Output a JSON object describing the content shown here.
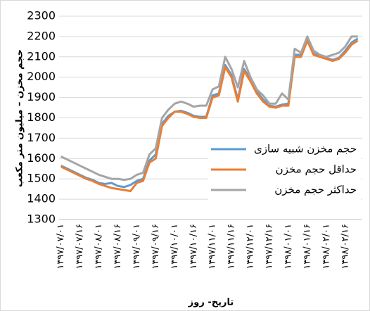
{
  "chart_data": {
    "type": "line",
    "y_label": "حجم مخزن – میلیون متر مکعب",
    "x_label": "تاریخ- روز",
    "categories": [
      "۱۳۹۷/۰۷/۰۱",
      null,
      null,
      "۱۳۹۷/۰۷/۱۶",
      null,
      null,
      "۱۳۹۷/۰۸/۰۱",
      null,
      null,
      "۱۳۹۷/۰۸/۱۶",
      null,
      null,
      "۱۳۹۷/۰۹/۰۱",
      null,
      null,
      "۱۳۹۷/۰۹/۱۶",
      null,
      null,
      "۱۳۹۷/۱۰/۰۱",
      null,
      null,
      "۱۳۹۷/۱۰/۱۶",
      null,
      null,
      "۱۳۹۷/۱۱/۰۱",
      null,
      null,
      "۱۳۹۷/۱۱/۱۶",
      null,
      null,
      "۱۳۹۷/۱۲/۰۱",
      null,
      null,
      "۱۳۹۷/۱۲/۱۶",
      null,
      null,
      "۱۳۹۸/۰۱/۰۱",
      null,
      null,
      "۱۳۹۸/۰۱/۱۶",
      null,
      null,
      "۱۳۹۸/۰۲/۰۱",
      null,
      null,
      "۱۳۹۸/۰۲/۱۶",
      null,
      null
    ],
    "series": [
      {
        "name": "حجم مخزن  شبیه سازی",
        "color": "#5b9bd5",
        "values": [
          1565,
          1550,
          1535,
          1520,
          1505,
          1495,
          1480,
          1475,
          1480,
          1465,
          1460,
          1470,
          1490,
          1500,
          1590,
          1620,
          1770,
          1810,
          1830,
          1835,
          1825,
          1810,
          1805,
          1805,
          1910,
          1920,
          2060,
          2010,
          1890,
          2040,
          1990,
          1930,
          1890,
          1860,
          1855,
          1865,
          1870,
          2110,
          2110,
          2190,
          2115,
          2105,
          2095,
          2085,
          2095,
          2130,
          2170,
          2190
        ]
      },
      {
        "name": "حداقل حجم مخزن",
        "color": "#ed7d31",
        "values": [
          1560,
          1545,
          1530,
          1515,
          1500,
          1490,
          1475,
          1465,
          1455,
          1450,
          1445,
          1440,
          1480,
          1490,
          1580,
          1600,
          1760,
          1800,
          1830,
          1830,
          1820,
          1805,
          1800,
          1800,
          1900,
          1910,
          2050,
          2000,
          1880,
          2030,
          1980,
          1920,
          1880,
          1855,
          1850,
          1860,
          1860,
          2100,
          2100,
          2180,
          2110,
          2100,
          2090,
          2080,
          2090,
          2120,
          2160,
          2180
        ]
      },
      {
        "name": "حداکثر حجم مخزن",
        "color": "#a5a5a5",
        "values": [
          1610,
          1595,
          1580,
          1565,
          1550,
          1535,
          1520,
          1510,
          1500,
          1500,
          1495,
          1500,
          1520,
          1530,
          1620,
          1650,
          1800,
          1840,
          1870,
          1880,
          1870,
          1855,
          1860,
          1860,
          1940,
          1955,
          2100,
          2040,
          1950,
          2080,
          2000,
          1940,
          1910,
          1870,
          1870,
          1920,
          1890,
          2140,
          2120,
          2200,
          2130,
          2110,
          2100,
          2110,
          2120,
          2150,
          2200,
          2200
        ]
      }
    ],
    "ylim": [
      1300,
      2300
    ],
    "yticks": [
      1300,
      1400,
      1500,
      1600,
      1700,
      1800,
      1900,
      2000,
      2100,
      2200,
      2300
    ],
    "grid": true,
    "legend": "right"
  }
}
